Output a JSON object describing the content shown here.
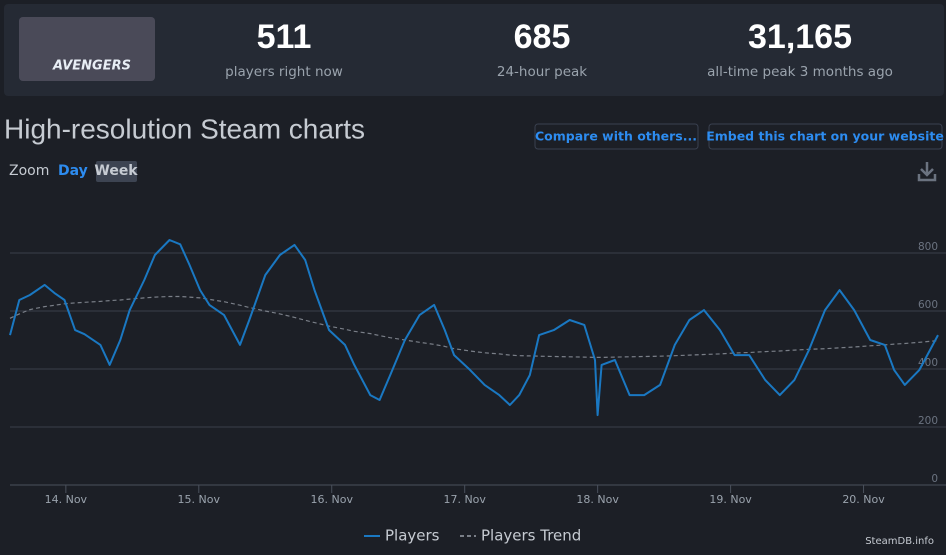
{
  "header": {
    "logo_text": "AVENGERS",
    "stats": [
      {
        "value": "511",
        "label": "players right now"
      },
      {
        "value": "685",
        "label": "24-hour peak"
      },
      {
        "value": "31,165",
        "label": "all-time peak 3 months ago"
      }
    ]
  },
  "title": "High-resolution Steam charts",
  "buttons": [
    "Compare with others...",
    "Embed this chart on your website"
  ],
  "zoom": {
    "label": "Zoom",
    "options": [
      "Day",
      "Week"
    ]
  },
  "credit": "SteamDB.info",
  "chart_data": {
    "type": "line",
    "x": [
      13.58,
      13.65,
      13.73,
      13.84,
      13.92,
      13.99,
      14.07,
      14.14,
      14.26,
      14.33,
      14.41,
      14.48,
      14.59,
      14.67,
      14.78,
      14.86,
      14.93,
      15.01,
      15.08,
      15.19,
      15.31,
      15.38,
      15.5,
      15.61,
      15.72,
      15.8,
      15.87,
      15.98,
      16.1,
      16.17,
      16.29,
      16.36,
      16.44,
      16.55,
      16.66,
      16.77,
      16.85,
      16.92,
      17.04,
      17.15,
      17.26,
      17.34,
      17.41,
      17.49,
      17.56,
      17.67,
      17.79,
      17.9,
      17.98,
      18.0,
      18.03,
      18.13,
      18.24,
      18.35,
      18.47,
      18.58,
      18.69,
      18.8,
      18.92,
      19.03,
      19.14,
      19.26,
      19.37,
      19.48,
      19.59,
      19.71,
      19.82,
      19.93,
      20.05,
      20.16,
      20.23,
      20.31,
      20.42,
      20.56
    ],
    "series": [
      {
        "name": "Players",
        "color": "#1a78c2",
        "dashed": false,
        "values": [
          517,
          638,
          655,
          690,
          660,
          638,
          534,
          520,
          483,
          414,
          500,
          603,
          707,
          793,
          845,
          830,
          759,
          672,
          621,
          586,
          483,
          569,
          724,
          793,
          828,
          776,
          672,
          534,
          483,
          414,
          310,
          293,
          379,
          500,
          586,
          621,
          534,
          448,
          397,
          345,
          310,
          276,
          310,
          379,
          517,
          534,
          569,
          552,
          431,
          241,
          414,
          431,
          310,
          310,
          345,
          483,
          569,
          603,
          534,
          448,
          448,
          362,
          310,
          362,
          466,
          603,
          672,
          603,
          500,
          483,
          397,
          345,
          397,
          517
        ]
      },
      {
        "name": "Players Trend",
        "color": "#7a7f88",
        "dashed": true,
        "values": [
          575,
          590,
          605,
          615,
          620,
          625,
          628,
          630,
          633,
          636,
          638,
          641,
          645,
          648,
          650,
          650,
          648,
          645,
          640,
          632,
          620,
          612,
          600,
          590,
          578,
          568,
          560,
          548,
          537,
          530,
          522,
          515,
          508,
          500,
          492,
          485,
          478,
          470,
          462,
          456,
          452,
          448,
          446,
          445,
          444,
          443,
          442,
          441,
          440,
          440,
          440,
          441,
          442,
          443,
          444,
          446,
          448,
          450,
          452,
          455,
          457,
          460,
          462,
          465,
          468,
          470,
          473,
          476,
          480,
          483,
          486,
          488,
          492,
          498
        ]
      }
    ],
    "xlim": [
      13.58,
      20.56
    ],
    "xticks": [
      {
        "value": 14,
        "label": "14. Nov"
      },
      {
        "value": 15,
        "label": "15. Nov"
      },
      {
        "value": 16,
        "label": "16. Nov"
      },
      {
        "value": 17,
        "label": "17. Nov"
      },
      {
        "value": 18,
        "label": "18. Nov"
      },
      {
        "value": 19,
        "label": "19. Nov"
      },
      {
        "value": 20,
        "label": "20. Nov"
      }
    ],
    "ylim": [
      0,
      1000
    ],
    "yticks": [
      0,
      200,
      400,
      600,
      800
    ],
    "grid": true,
    "legend": "bottom"
  }
}
